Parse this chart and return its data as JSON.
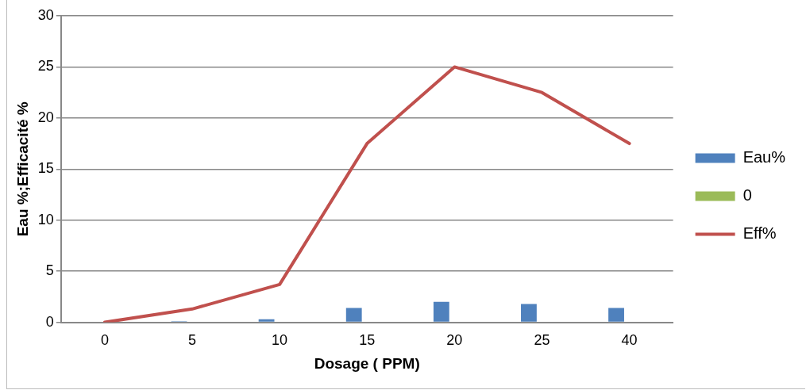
{
  "chart_data": {
    "type": "bar",
    "xlabel": "Dosage ( PPM)",
    "ylabel": "Eau %;Efficacité %",
    "categories": [
      "0",
      "5",
      "10",
      "15",
      "20",
      "25",
      "40"
    ],
    "series": [
      {
        "name": "Eau%",
        "color": "#4f81bd",
        "values": [
          0,
          0.1,
          0.3,
          1.4,
          2.0,
          1.8,
          1.4
        ]
      },
      {
        "name": "0",
        "color": "#9bbb59",
        "values": [
          0,
          0,
          0,
          0,
          0,
          0,
          0
        ]
      },
      {
        "name": "Eff%",
        "type": "line",
        "color": "#c0504d",
        "values": [
          0,
          1.3,
          3.7,
          17.5,
          25,
          22.5,
          17.5
        ]
      }
    ],
    "ylim": [
      0,
      30
    ],
    "yticks": [
      0,
      5,
      10,
      15,
      20,
      25,
      30
    ],
    "grid": "y",
    "legend": "right",
    "marker": "none"
  }
}
